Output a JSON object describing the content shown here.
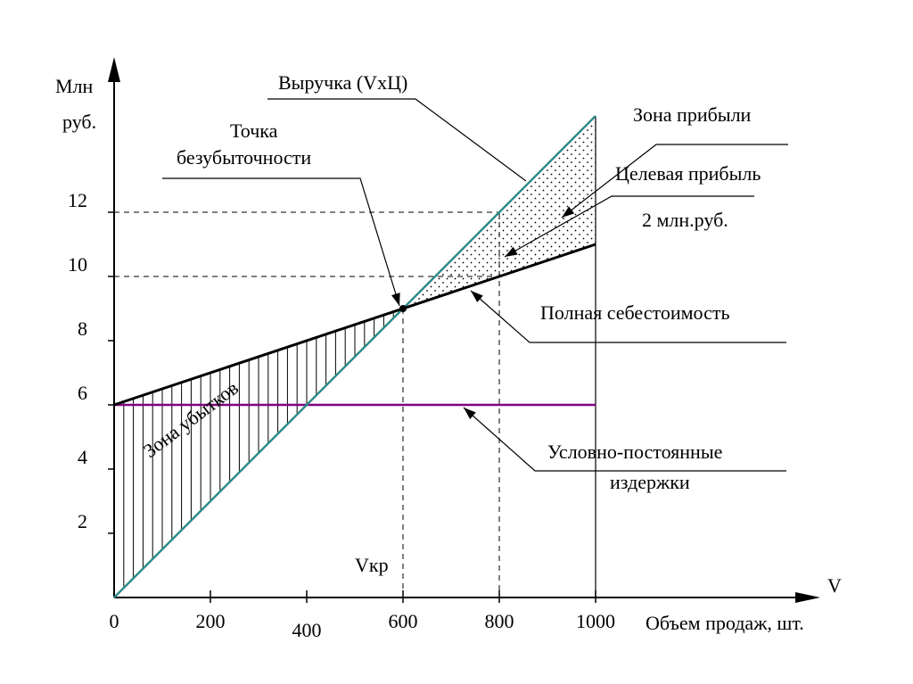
{
  "chart_data": {
    "type": "line",
    "x_axis": {
      "label": "Объем продаж, шт.",
      "symbol": "V",
      "range": [
        0,
        1000
      ],
      "ticks": [
        0,
        200,
        400,
        600,
        800,
        1000
      ],
      "tick_labels": [
        "0",
        "200",
        "400",
        "600",
        "800",
        "1000"
      ]
    },
    "y_axis": {
      "label_line1": "Млн",
      "label_line2": "руб.",
      "range": [
        0,
        16
      ],
      "ticks": [
        2,
        4,
        6,
        8,
        10,
        12
      ],
      "tick_labels": [
        "2",
        "4",
        "6",
        "8",
        "10",
        "12"
      ]
    },
    "series": [
      {
        "name": "Выручка (VxЦ)",
        "color": "#2e8b8b",
        "x": [
          0,
          600,
          800,
          1000
        ],
        "y": [
          0,
          9,
          12,
          15
        ]
      },
      {
        "name": "Полная себестоимость",
        "color": "#000000",
        "x": [
          0,
          600,
          800,
          1000
        ],
        "y": [
          6,
          9,
          10,
          11
        ]
      },
      {
        "name": "Условно-постоянные издержки",
        "color": "#800080",
        "x": [
          0,
          1000
        ],
        "y": [
          6,
          6
        ]
      }
    ],
    "break_even": {
      "x": 600,
      "y": 9
    },
    "target": {
      "x": 800,
      "revenue": 12,
      "cost": 10
    },
    "annotations": {
      "revenue": "Выручка (VxЦ)",
      "profit_zone": "Зона прибыли",
      "break_even_line1": "Точка",
      "break_even_line2": "безубыточности",
      "target_profit_line1": "Целевая прибыль",
      "target_profit_line2": "2 млн.руб.",
      "total_cost": "Полная себестоимость",
      "fixed_costs_line1": "Условно-постоянные",
      "fixed_costs_line2": "издержки",
      "loss_zone": "Зона убытков",
      "vkr": "Vкр"
    },
    "colors": {
      "revenue": "#2e8b8b",
      "fixed": "#800080",
      "cost": "#000000"
    }
  }
}
